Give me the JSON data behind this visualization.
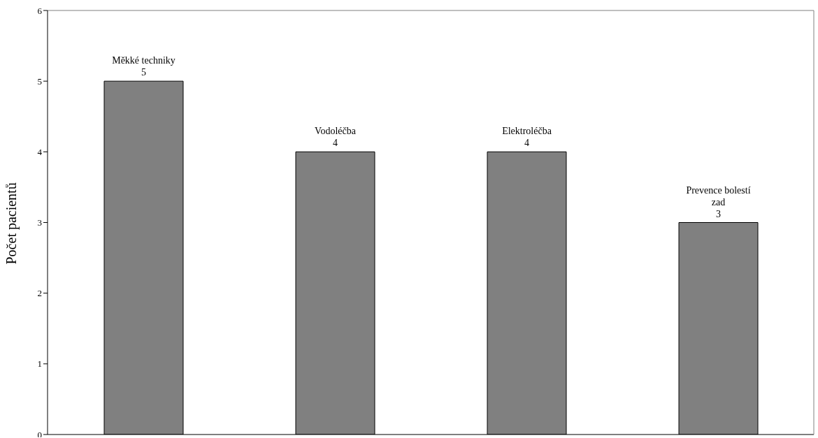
{
  "chart_data": {
    "type": "bar",
    "ylabel": "Počet pacientů",
    "categories": [
      "Měkké techniky",
      "Vodoléčba",
      "Elektroléčba",
      "Prevence bolestí zad"
    ],
    "values": [
      5,
      4,
      4,
      3
    ],
    "color": "#808080",
    "ylim": [
      0,
      6
    ],
    "yticks": [
      0,
      1,
      2,
      3,
      4,
      5,
      6
    ],
    "data_labels": true,
    "tick_labels": "y"
  }
}
